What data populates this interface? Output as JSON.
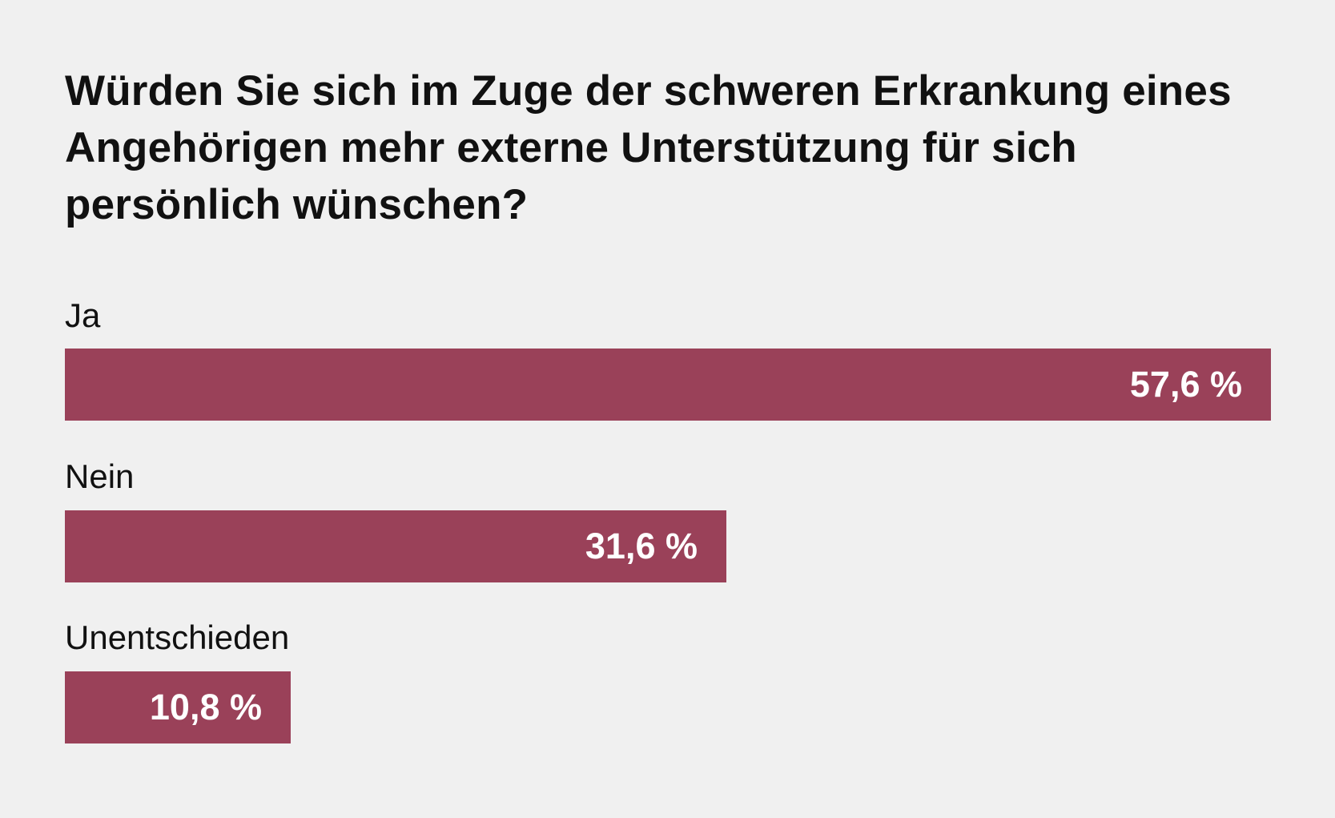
{
  "chart_data": {
    "type": "bar",
    "orientation": "horizontal",
    "title": "Würden Sie sich im Zuge der schweren Erkrankung eines Angehörigen mehr externe Unterstützung für sich persönlich wünschen?",
    "categories": [
      "Ja",
      "Nein",
      "Unentschieden"
    ],
    "values": [
      57.6,
      31.6,
      10.8
    ],
    "value_labels": [
      "57,6 %",
      "31,6 %",
      "10,8 %"
    ],
    "unit": "%",
    "xlim": [
      0,
      57.6
    ],
    "grid": false,
    "legend": "none",
    "bar_color": "#9a4159"
  }
}
